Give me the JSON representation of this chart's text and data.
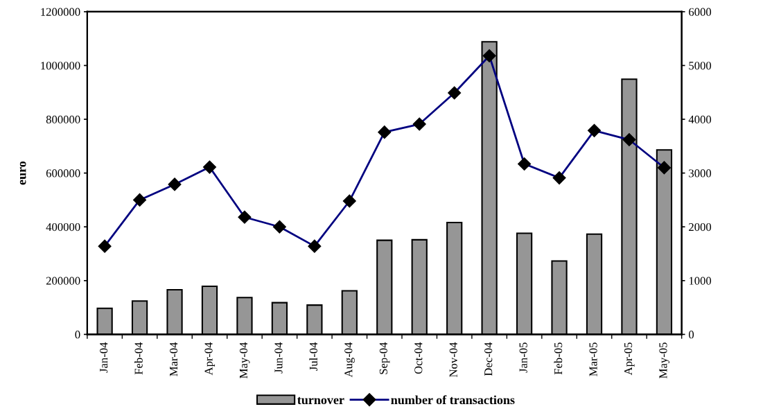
{
  "chart_data": {
    "type": "bar",
    "ylabel": "euro",
    "categories": [
      "Jan-04",
      "Feb-04",
      "Mar-04",
      "Apr-04",
      "May-04",
      "Jun-04",
      "Jul-04",
      "Aug-04",
      "Sep-04",
      "Oct-04",
      "Nov-04",
      "Dec-04",
      "Jan-05",
      "Feb-05",
      "Mar-05",
      "Apr-05",
      "May-05"
    ],
    "series": [
      {
        "name": "turnover",
        "color": "#969696",
        "values": [
          97000,
          124000,
          166000,
          179000,
          137000,
          118000,
          109000,
          162000,
          350000,
          352000,
          416000,
          1088000,
          376000,
          273000,
          373000,
          949000,
          686000
        ]
      },
      {
        "name": "number of transactions",
        "type": "line",
        "axis": "y2",
        "color": "#000080",
        "marker": "diamond",
        "values": [
          1640,
          2500,
          2790,
          3110,
          2180,
          2000,
          1640,
          2480,
          3760,
          3910,
          4490,
          5180,
          3170,
          2910,
          3790,
          3620,
          3100
        ]
      }
    ],
    "ylim": [
      0,
      1200000
    ],
    "yticks": [
      0,
      200000,
      400000,
      600000,
      800000,
      1000000,
      1200000
    ],
    "y2lim": [
      0,
      6000
    ],
    "y2ticks": [
      0,
      1000,
      2000,
      3000,
      4000,
      5000,
      6000
    ],
    "grid": false,
    "legend": "bottom"
  }
}
